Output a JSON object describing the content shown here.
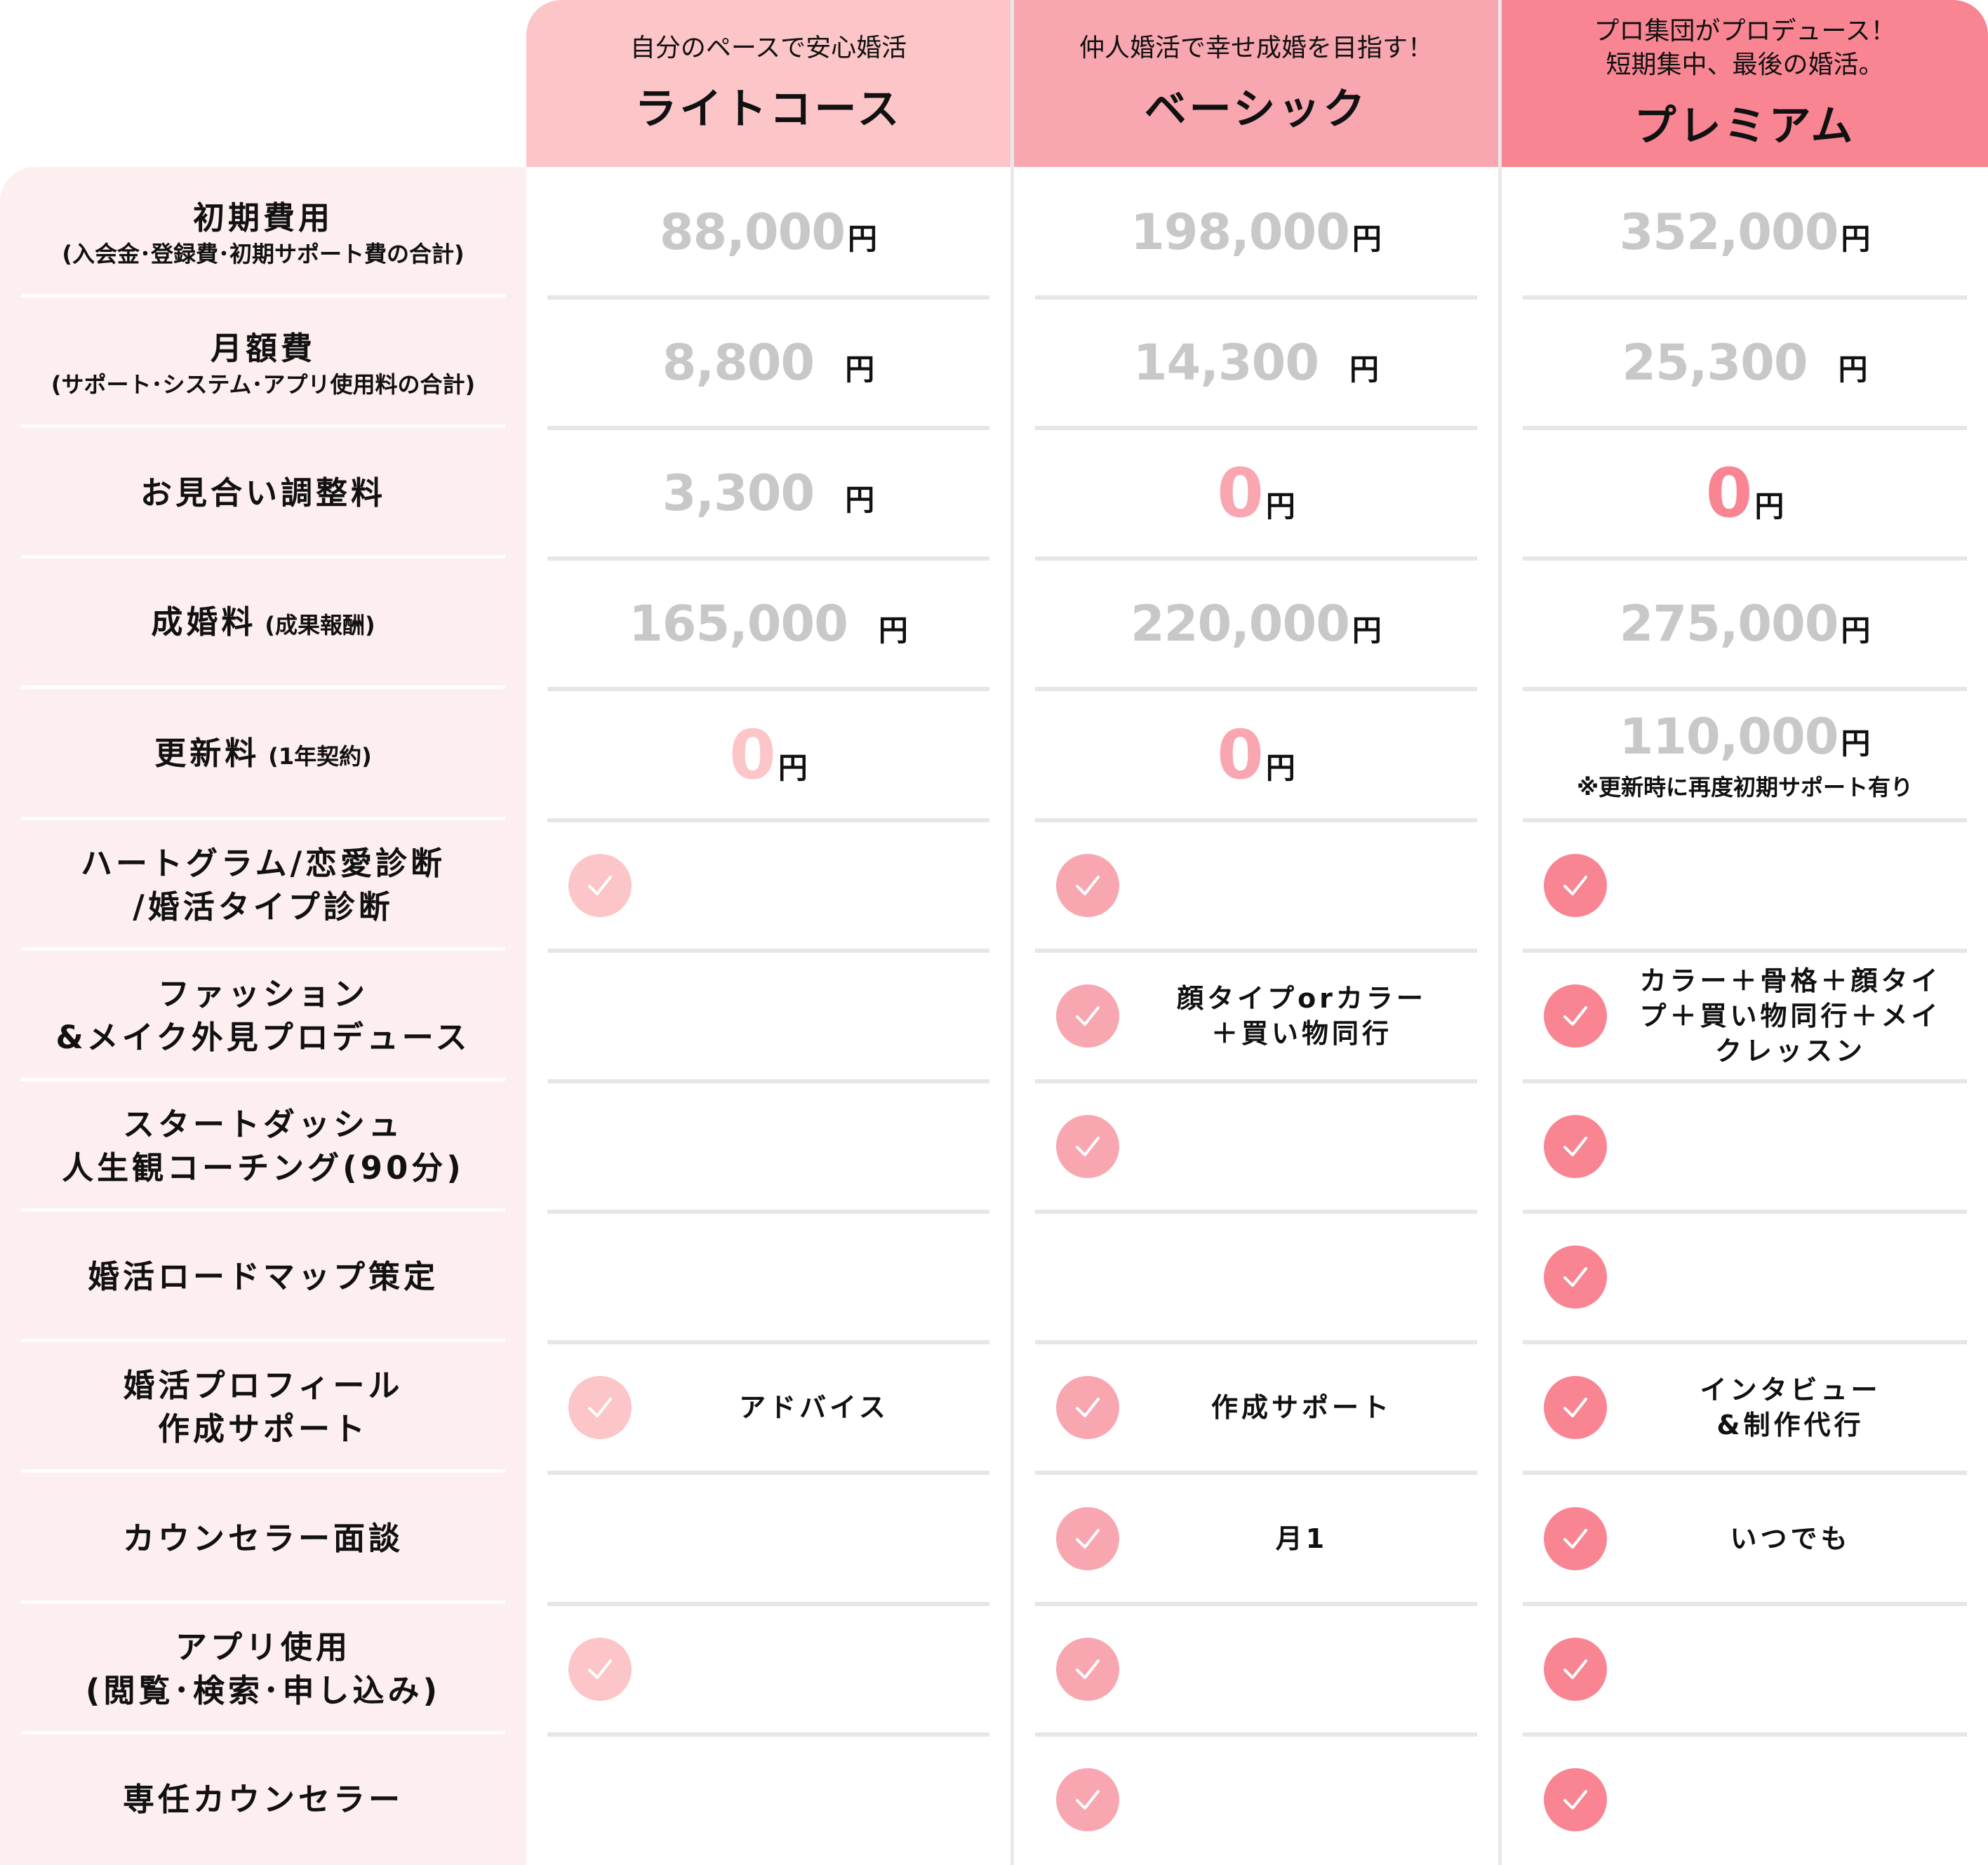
{
  "colors": {
    "light": "#fcc5c8",
    "basic": "#f8a7b0",
    "premium": "#f98593",
    "label_bg": "#fdeef0",
    "price_grey": "#c8c8c8"
  },
  "plans": [
    {
      "tagline": [
        "自分のペースで安心婚活"
      ],
      "name": "ライトコース"
    },
    {
      "tagline": [
        "仲人婚活で幸せ成婚を目指す！"
      ],
      "name": "ベーシック"
    },
    {
      "tagline": [
        "プロ集団がプロデュース！",
        "短期集中、最後の婚活。"
      ],
      "name": "プレミアム"
    }
  ],
  "rows": [
    {
      "label": [
        "初期費用"
      ],
      "small": "(入会金･登録費･初期サポート費の合計)",
      "cells": [
        {
          "price": "88,000",
          "unit": "円"
        },
        {
          "price": "198,000",
          "unit": "円"
        },
        {
          "price": "352,000",
          "unit": "円"
        }
      ]
    },
    {
      "label": [
        "月額費"
      ],
      "small": "(サポート･システム･アプリ使用料の合計)",
      "cells": [
        {
          "price": "8,800",
          "unit": "円",
          "gap": true
        },
        {
          "price": "14,300",
          "unit": "円",
          "gap": true
        },
        {
          "price": "25,300",
          "unit": "円",
          "gap": true
        }
      ]
    },
    {
      "label": [
        "お見合い調整料"
      ],
      "cells": [
        {
          "price": "3,300",
          "unit": "円",
          "gap": true
        },
        {
          "price": "0",
          "unit": "円",
          "zero": true
        },
        {
          "price": "0",
          "unit": "円",
          "zero": true
        }
      ]
    },
    {
      "label": [
        "成婚料"
      ],
      "inline": "(成果報酬)",
      "cells": [
        {
          "price": "165,000",
          "unit": "円",
          "gap": true
        },
        {
          "price": "220,000",
          "unit": "円"
        },
        {
          "price": "275,000",
          "unit": "円"
        }
      ]
    },
    {
      "label": [
        "更新料"
      ],
      "inline": "(1年契約)",
      "cells": [
        {
          "price": "0",
          "unit": "円",
          "zero": true
        },
        {
          "price": "0",
          "unit": "円",
          "zero": true
        },
        {
          "price": "110,000",
          "unit": "円",
          "note": "※更新時に再度初期サポート有り"
        }
      ]
    },
    {
      "label": [
        "ハートグラム/恋愛診断",
        "/婚活タイプ診断"
      ],
      "cells": [
        {
          "check": true
        },
        {
          "check": true
        },
        {
          "check": true
        }
      ]
    },
    {
      "label": [
        "ファッション",
        "&メイク外見プロデュース"
      ],
      "cells": [
        {},
        {
          "check": true,
          "text": "顔タイプorカラー\n＋買い物同行"
        },
        {
          "check": true,
          "text": "カラー＋骨格＋顔タイ\nプ＋買い物同行＋メイ\nクレッスン"
        }
      ]
    },
    {
      "label": [
        "スタートダッシュ",
        "人生観コーチング(90分)"
      ],
      "cells": [
        {},
        {
          "check": true
        },
        {
          "check": true
        }
      ]
    },
    {
      "label": [
        "婚活ロードマップ策定"
      ],
      "cells": [
        {},
        {},
        {
          "check": true
        }
      ]
    },
    {
      "label": [
        "婚活プロフィール",
        "作成サポート"
      ],
      "cells": [
        {
          "check": true,
          "text": "アドバイス"
        },
        {
          "check": true,
          "text": "作成サポート"
        },
        {
          "check": true,
          "text": "インタビュー\n&制作代行"
        }
      ]
    },
    {
      "label": [
        "カウンセラー面談"
      ],
      "cells": [
        {},
        {
          "check": true,
          "text": "月1"
        },
        {
          "check": true,
          "text": "いつでも"
        }
      ]
    },
    {
      "label": [
        "アプリ使用",
        "(閲覧･検索･申し込み)"
      ],
      "cells": [
        {
          "check": true
        },
        {
          "check": true
        },
        {
          "check": true
        }
      ]
    },
    {
      "label": [
        "専任カウンセラー"
      ],
      "cells": [
        {},
        {
          "check": true
        },
        {
          "check": true
        }
      ]
    }
  ]
}
